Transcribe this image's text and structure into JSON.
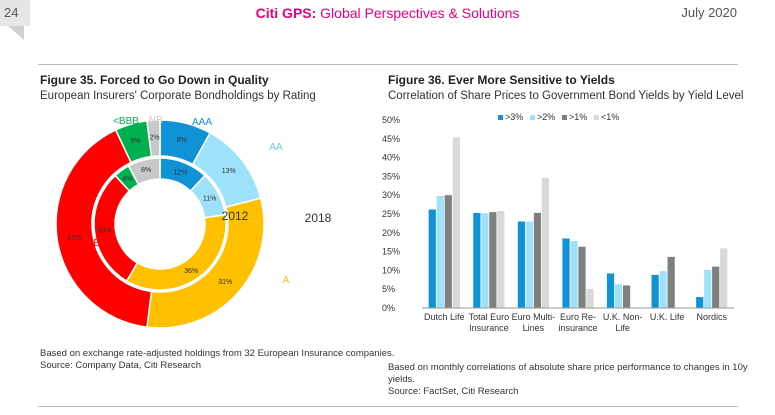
{
  "header": {
    "page_number": "24",
    "brand": "Citi GPS:",
    "subtitle": "Global Perspectives & Solutions",
    "date": "July 2020"
  },
  "figure35": {
    "title": "Figure 35. Forced to Go Down in Quality",
    "subtitle": "European Insurers' Corporate Bondholdings by Rating",
    "note": "Based on exchange rate-adjusted holdings from 32 European Insurance companies.",
    "source": "Source: Company Data, Citi Research",
    "label_inner_year": "2012",
    "label_outer_year": "2018"
  },
  "figure36": {
    "title": "Figure 36. Ever More Sensitive to Yields",
    "subtitle": "Correlation of Share Prices to Government Bond Yields by Yield Level",
    "note_line1": "Based on monthly correlations of absolute share price performance to changes in 10y",
    "note_line2": "yields.",
    "source": "Source: FactSet, Citi Research"
  },
  "chart_data": [
    {
      "type": "pie",
      "title": "European Insurers' Corporate Bondholdings by Rating",
      "variant": "nested donut",
      "categories": [
        "AAA",
        "AA",
        "A",
        "BBB",
        "<BBB",
        "NR"
      ],
      "colors": [
        "#0f93d6",
        "#9ee1fb",
        "#ffc000",
        "#ff0000",
        "#00b050",
        "#c8c8c8"
      ],
      "series": [
        {
          "name": "2018",
          "values": [
            8,
            13,
            31,
            41,
            5,
            2
          ],
          "labels": [
            "8%",
            "13%",
            "31%",
            "41%",
            "5%",
            "2%"
          ]
        },
        {
          "name": "2012",
          "values": [
            12,
            11,
            36,
            30,
            4,
            8
          ],
          "labels": [
            "12%",
            "11%",
            "36%",
            "30%",
            "4%",
            "8%"
          ]
        }
      ]
    },
    {
      "type": "bar",
      "title": "Correlation of Share Prices to Government Bond Yields by Yield Level",
      "categories": [
        [
          "Dutch Life"
        ],
        [
          "Total Euro",
          "Insurance"
        ],
        [
          "Euro Multi-",
          "Lines"
        ],
        [
          "Euro Re-",
          "insurance"
        ],
        [
          "U.K. Non-",
          "Life"
        ],
        [
          "U.K. Life"
        ],
        [
          "Nordics"
        ]
      ],
      "series": [
        {
          "name": ">3%",
          "color": "#0f93d6",
          "values": [
            26.2,
            25.3,
            23.0,
            18.5,
            9.2,
            8.8,
            2.9
          ]
        },
        {
          "name": ">2%",
          "color": "#9ee1fb",
          "values": [
            29.8,
            25.2,
            23.0,
            17.8,
            6.3,
            9.8,
            10.1
          ]
        },
        {
          "name": ">1%",
          "color": "#7f7f7f",
          "values": [
            30.0,
            25.5,
            25.3,
            16.3,
            6.0,
            13.6,
            11.0
          ]
        },
        {
          "name": "<1%",
          "color": "#d9d9d9",
          "values": [
            45.4,
            25.8,
            34.6,
            5.1,
            0,
            0,
            15.9
          ]
        }
      ],
      "y_ticks": [
        "0%",
        "5%",
        "10%",
        "15%",
        "20%",
        "25%",
        "30%",
        "35%",
        "40%",
        "45%",
        "50%"
      ],
      "ylim": [
        0,
        50
      ],
      "legend_position": "top"
    }
  ]
}
